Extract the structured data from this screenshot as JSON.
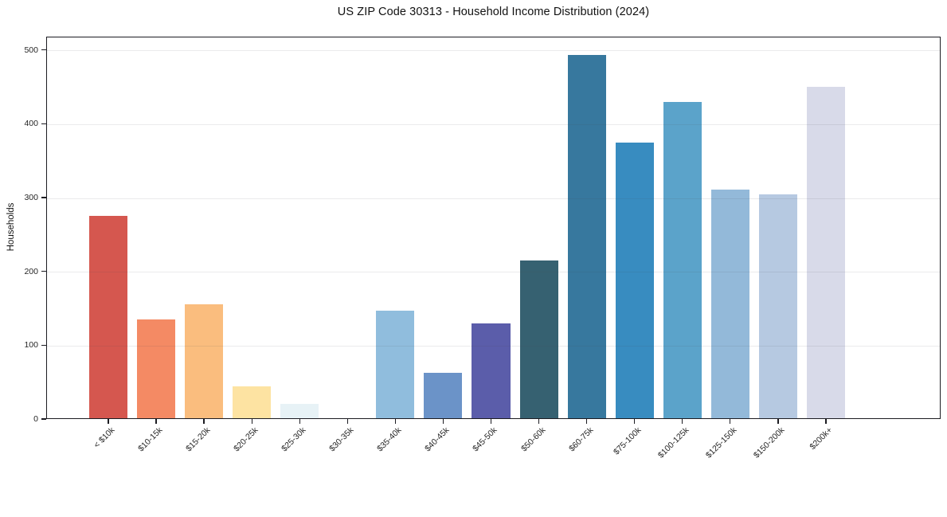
{
  "chart_data": {
    "type": "bar",
    "title": "US ZIP Code 30313 - Household Income Distribution (2024)",
    "xlabel": "",
    "ylabel": "Households",
    "categories": [
      "< $10k",
      "$10-15k",
      "$15-20k",
      "$20-25k",
      "$25-30k",
      "$30-35k",
      "$35-40k",
      "$40-45k",
      "$45-50k",
      "$50-60k",
      "$60-75k",
      "$75-100k",
      "$100-125k",
      "$125-150k",
      "$150-200k",
      "$200k+"
    ],
    "values": [
      275,
      135,
      155,
      44,
      20,
      0,
      147,
      63,
      130,
      215,
      493,
      374,
      430,
      311,
      304,
      450
    ],
    "bar_colors": [
      "#d5574f",
      "#f48a64",
      "#fabd7e",
      "#fde3a2",
      "#e7f2f6",
      "#ffffbf",
      "#90bddd",
      "#6b93c8",
      "#5b5daa",
      "#366171",
      "#37789e",
      "#388cc0",
      "#5ba3ca",
      "#93b9d9",
      "#b6c9e1",
      "#d8dae9"
    ],
    "yticks": [
      0,
      100,
      200,
      300,
      400,
      500
    ],
    "ylim": [
      0,
      518
    ],
    "bar_width_ratio": 0.8,
    "grid": "horizontal",
    "legend": "none",
    "background_color": "#ffffff",
    "spine_color": "#1c1c22",
    "gridline_color": "#e9e9ee",
    "tick_label_color": "#262626"
  }
}
